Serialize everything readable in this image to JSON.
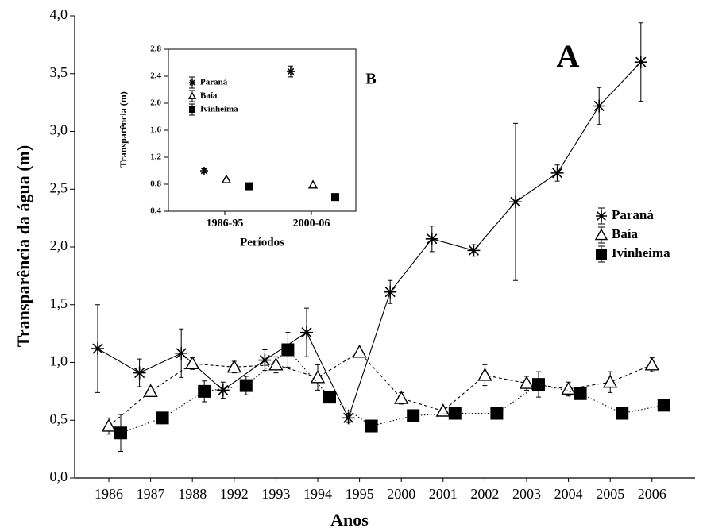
{
  "chart_data": [
    {
      "type": "line",
      "x_label": "Anos",
      "y_label": "Transparência da água (m)",
      "annotation": "A",
      "categories": [
        "1986",
        "1987",
        "1988",
        "1992",
        "1993",
        "1994",
        "1995",
        "2000",
        "2001",
        "2002",
        "2003",
        "2004",
        "2005",
        "2006"
      ],
      "ylim": [
        0,
        4
      ],
      "yticks": [
        {
          "value": 0,
          "label": "0,0"
        },
        {
          "value": 0.5,
          "label": "0,5"
        },
        {
          "value": 1,
          "label": "1,0"
        },
        {
          "value": 1.5,
          "label": "1,5"
        },
        {
          "value": 2,
          "label": "2,0"
        },
        {
          "value": 2.5,
          "label": "2,5"
        },
        {
          "value": 3,
          "label": "3,0"
        },
        {
          "value": 3.5,
          "label": "3,5"
        },
        {
          "value": 4,
          "label": "4,0"
        }
      ],
      "lines": true,
      "series": [
        {
          "name": "Paraná",
          "color": "#000000",
          "marker": "asterisk",
          "linestyle": "solid",
          "values": [
            1.12,
            0.91,
            1.08,
            0.76,
            1.02,
            1.26,
            0.52,
            1.61,
            2.07,
            1.97,
            2.39,
            2.64,
            3.22,
            3.6
          ],
          "errors": [
            0.38,
            0.12,
            0.21,
            0.07,
            0.09,
            0.21,
            0.04,
            0.1,
            0.11,
            0.05,
            0.68,
            0.07,
            0.16,
            0.34
          ]
        },
        {
          "name": "Baía",
          "color": "#000000",
          "marker": "triangle",
          "linestyle": "dashed",
          "values": [
            0.45,
            0.75,
            0.99,
            0.96,
            0.98,
            0.87,
            1.09,
            0.69,
            0.58,
            0.89,
            0.82,
            0.77,
            0.83,
            0.98
          ],
          "errors": [
            0.07,
            0.04,
            0.05,
            0.05,
            0.07,
            0.11,
            0.02,
            0.05,
            0.02,
            0.09,
            0.06,
            0.06,
            0.09,
            0.06
          ]
        },
        {
          "name": "Ivinheima",
          "color": "#000000",
          "marker": "square",
          "linestyle": "dotted",
          "values": [
            0.39,
            0.52,
            0.75,
            0.8,
            1.11,
            0.7,
            0.45,
            0.54,
            0.56,
            0.56,
            0.81,
            0.73,
            0.56,
            0.63
          ],
          "errors": [
            0.16,
            0.05,
            0.09,
            0.08,
            0.15,
            0.05,
            0.01,
            0.01,
            0.01,
            0.01,
            0.11,
            0.03,
            0.04,
            0.02
          ]
        }
      ]
    },
    {
      "type": "scatter",
      "x_label": "Períodos",
      "y_label": "Transparência (m)",
      "annotation": "B",
      "categories": [
        "1986-95",
        "2000-06"
      ],
      "ylim": [
        0.4,
        2.8
      ],
      "yticks": [
        {
          "value": 0.4,
          "label": "0,4"
        },
        {
          "value": 0.8,
          "label": "0,8"
        },
        {
          "value": 1.2,
          "label": "1,2"
        },
        {
          "value": 1.6,
          "label": "1,6"
        },
        {
          "value": 2.0,
          "label": "2,0"
        },
        {
          "value": 2.4,
          "label": "2,4"
        },
        {
          "value": 2.8,
          "label": "2,8"
        }
      ],
      "lines": false,
      "series": [
        {
          "name": "Paraná",
          "color": "#000000",
          "marker": "asterisk",
          "values": [
            1.0,
            2.47
          ],
          "errors": [
            0.03,
            0.08
          ]
        },
        {
          "name": "Baía",
          "color": "#000000",
          "marker": "triangle",
          "values": [
            0.87,
            0.79
          ],
          "errors": [
            0.02,
            0.02
          ]
        },
        {
          "name": "Ivinheima",
          "color": "#000000",
          "marker": "square",
          "values": [
            0.77,
            0.61
          ],
          "errors": [
            0.03,
            0.01
          ]
        }
      ]
    }
  ]
}
